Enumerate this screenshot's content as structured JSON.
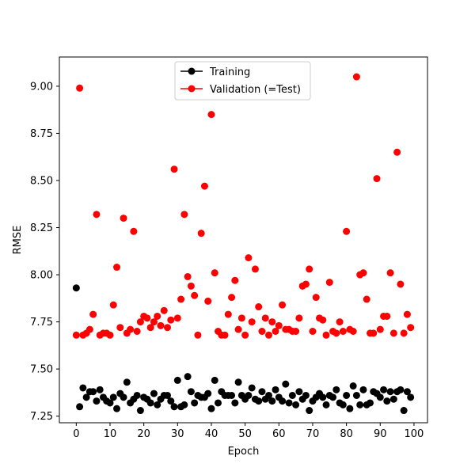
{
  "chart_data": {
    "type": "scatter",
    "title": "",
    "xlabel": "Epoch",
    "ylabel": "RMSE",
    "xlim": [
      -5,
      104
    ],
    "ylim": [
      7.215,
      9.155
    ],
    "xticks": [
      "0",
      "10",
      "20",
      "30",
      "40",
      "50",
      "60",
      "70",
      "80",
      "90",
      "100"
    ],
    "yticks": [
      "7.25",
      "7.50",
      "7.75",
      "8.00",
      "8.25",
      "8.50",
      "8.75",
      "9.00"
    ],
    "xtick_values": [
      0,
      10,
      20,
      30,
      40,
      50,
      60,
      70,
      80,
      90,
      100
    ],
    "ytick_values": [
      7.25,
      7.5,
      7.75,
      8.0,
      8.25,
      8.5,
      8.75,
      9.0
    ],
    "grid": false,
    "legend_position": "top-center",
    "series": [
      {
        "name": "Training",
        "color": "#000000",
        "x": [
          0,
          1,
          2,
          3,
          4,
          5,
          6,
          7,
          8,
          9,
          10,
          11,
          12,
          13,
          14,
          15,
          16,
          17,
          18,
          19,
          20,
          21,
          22,
          23,
          24,
          25,
          26,
          27,
          28,
          29,
          30,
          31,
          32,
          33,
          34,
          35,
          36,
          37,
          38,
          39,
          40,
          41,
          42,
          43,
          44,
          45,
          46,
          47,
          48,
          49,
          50,
          51,
          52,
          53,
          54,
          55,
          56,
          57,
          58,
          59,
          60,
          61,
          62,
          63,
          64,
          65,
          66,
          67,
          68,
          69,
          70,
          71,
          72,
          73,
          74,
          75,
          76,
          77,
          78,
          79,
          80,
          81,
          82,
          83,
          84,
          85,
          86,
          87,
          88,
          89,
          90,
          91,
          92,
          93,
          94,
          95,
          96,
          97,
          98,
          99
        ],
        "y": [
          7.93,
          7.3,
          7.4,
          7.35,
          7.38,
          7.38,
          7.33,
          7.39,
          7.35,
          7.33,
          7.32,
          7.35,
          7.29,
          7.37,
          7.35,
          7.43,
          7.32,
          7.34,
          7.36,
          7.28,
          7.35,
          7.34,
          7.32,
          7.37,
          7.31,
          7.34,
          7.36,
          7.36,
          7.33,
          7.3,
          7.44,
          7.3,
          7.31,
          7.46,
          7.38,
          7.32,
          7.36,
          7.35,
          7.35,
          7.37,
          7.29,
          7.44,
          7.32,
          7.38,
          7.36,
          7.36,
          7.36,
          7.32,
          7.43,
          7.36,
          7.34,
          7.36,
          7.4,
          7.34,
          7.33,
          7.38,
          7.34,
          7.36,
          7.33,
          7.39,
          7.35,
          7.33,
          7.42,
          7.32,
          7.36,
          7.31,
          7.38,
          7.34,
          7.36,
          7.28,
          7.33,
          7.35,
          7.37,
          7.35,
          7.31,
          7.36,
          7.35,
          7.39,
          7.32,
          7.31,
          7.36,
          7.29,
          7.41,
          7.36,
          7.31,
          7.39,
          7.31,
          7.32,
          7.38,
          7.37,
          7.35,
          7.39,
          7.33,
          7.38,
          7.34,
          7.38,
          7.39,
          7.28,
          7.38,
          7.35
        ]
      },
      {
        "name": "Validation (=Test)",
        "color": "#ff0000",
        "x": [
          0,
          1,
          2,
          3,
          4,
          5,
          6,
          7,
          8,
          9,
          10,
          11,
          12,
          13,
          14,
          15,
          16,
          17,
          18,
          19,
          20,
          21,
          22,
          23,
          24,
          25,
          26,
          27,
          28,
          29,
          30,
          31,
          32,
          33,
          34,
          35,
          36,
          37,
          38,
          39,
          40,
          41,
          42,
          43,
          44,
          45,
          46,
          47,
          48,
          49,
          50,
          51,
          52,
          53,
          54,
          55,
          56,
          57,
          58,
          59,
          60,
          61,
          62,
          63,
          64,
          65,
          66,
          67,
          68,
          69,
          70,
          71,
          72,
          73,
          74,
          75,
          76,
          77,
          78,
          79,
          80,
          81,
          82,
          83,
          84,
          85,
          86,
          87,
          88,
          89,
          90,
          91,
          92,
          93,
          94,
          95,
          96,
          97,
          98,
          99
        ],
        "y": [
          7.68,
          8.99,
          7.68,
          7.69,
          7.71,
          7.79,
          8.32,
          7.68,
          7.69,
          7.69,
          7.68,
          7.84,
          8.04,
          7.72,
          8.3,
          7.69,
          7.71,
          8.23,
          7.7,
          7.75,
          7.78,
          7.77,
          7.72,
          7.75,
          7.78,
          7.73,
          7.81,
          7.72,
          7.76,
          8.56,
          7.77,
          7.87,
          8.32,
          7.99,
          7.94,
          7.89,
          7.68,
          8.22,
          8.47,
          7.86,
          8.85,
          8.01,
          7.7,
          7.68,
          7.68,
          7.79,
          7.88,
          7.97,
          7.71,
          7.77,
          7.68,
          8.09,
          7.75,
          8.03,
          7.83,
          7.7,
          7.77,
          7.68,
          7.75,
          7.7,
          7.73,
          7.84,
          7.71,
          7.71,
          7.7,
          7.7,
          7.77,
          7.94,
          7.95,
          8.03,
          7.7,
          7.88,
          7.77,
          7.76,
          7.68,
          7.96,
          7.7,
          7.69,
          7.75,
          7.7,
          8.23,
          7.71,
          7.7,
          9.05,
          8.0,
          8.01,
          7.87,
          7.69,
          7.69,
          8.51,
          7.71,
          7.78,
          7.78,
          8.01,
          7.69,
          8.65,
          7.95,
          7.69,
          7.79,
          7.72
        ]
      }
    ]
  }
}
